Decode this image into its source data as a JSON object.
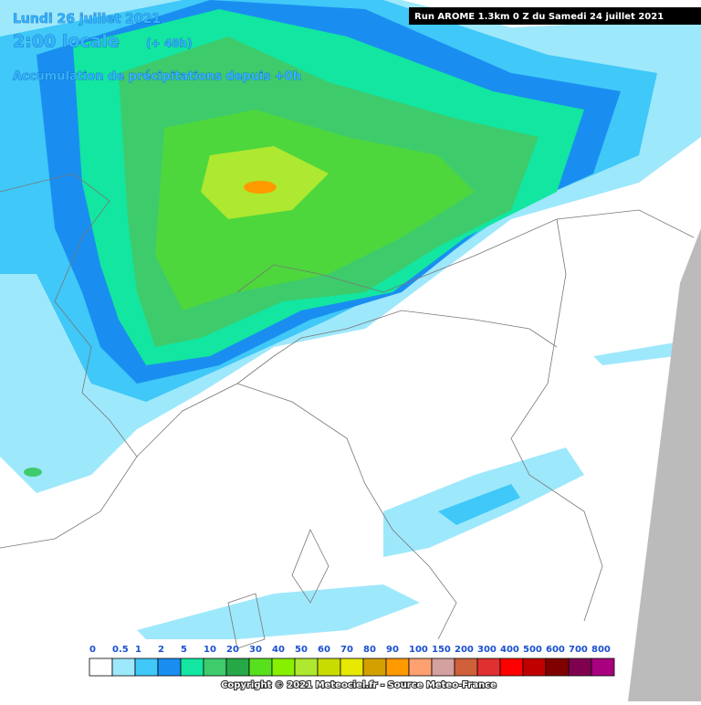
{
  "header": {
    "date": "Lundi 26 juillet 2021",
    "time": "2:00 locale",
    "lead": "(+ 48h)",
    "field": "Accumulation de précipitations depuis +0h",
    "run": "Run AROME 1.3km 0 Z du Samedi 24 juillet 2021"
  },
  "legend": [
    {
      "label": "0",
      "color": "#ffffff"
    },
    {
      "label": "0.5",
      "color": "#9ee8fc"
    },
    {
      "label": "1",
      "color": "#3fc8f8"
    },
    {
      "label": "2",
      "color": "#1a8ef0"
    },
    {
      "label": "5",
      "color": "#12e6a0"
    },
    {
      "label": "10",
      "color": "#3ecb6c"
    },
    {
      "label": "20",
      "color": "#26a848"
    },
    {
      "label": "30",
      "color": "#58e01e"
    },
    {
      "label": "40",
      "color": "#86f000"
    },
    {
      "label": "50",
      "color": "#aee830"
    },
    {
      "label": "60",
      "color": "#c8dc00"
    },
    {
      "label": "70",
      "color": "#e8e800"
    },
    {
      "label": "80",
      "color": "#d4a000"
    },
    {
      "label": "90",
      "color": "#ff9a00"
    },
    {
      "label": "100",
      "color": "#ffa070"
    },
    {
      "label": "150",
      "color": "#d4a0a0"
    },
    {
      "label": "200",
      "color": "#d0603a"
    },
    {
      "label": "300",
      "color": "#e03030"
    },
    {
      "label": "400",
      "color": "#ff0000"
    },
    {
      "label": "500",
      "color": "#c00000"
    },
    {
      "label": "600",
      "color": "#800000"
    },
    {
      "label": "700",
      "color": "#800050"
    },
    {
      "label": "800",
      "color": "#a8007e"
    }
  ],
  "footer": "Copyright © 2021 Meteociel.fr - Source Meteo-France"
}
